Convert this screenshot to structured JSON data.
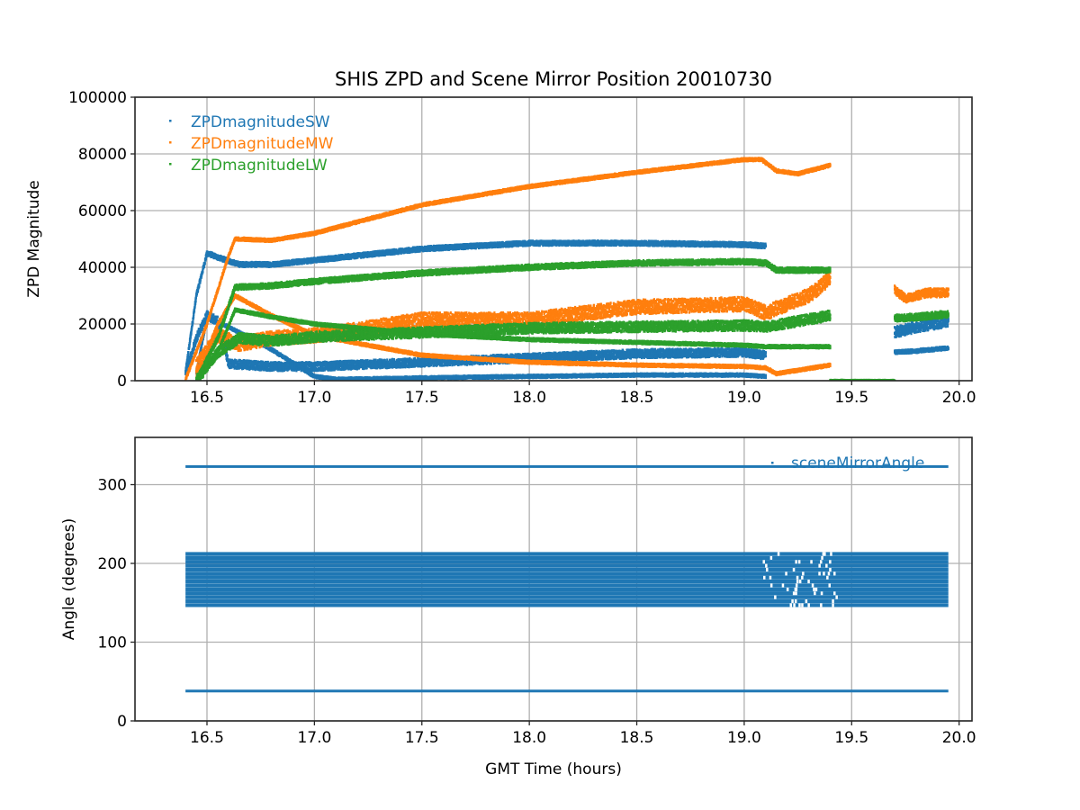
{
  "chart_data": [
    {
      "type": "scatter",
      "title": "SHIS ZPD and Scene Mirror Position 20010730",
      "xlabel": "",
      "ylabel": "ZPD Magnitude",
      "xlim": [
        16.165,
        20.06
      ],
      "ylim": [
        0,
        100000
      ],
      "xticks": [
        "16.5",
        "17.0",
        "17.5",
        "18.0",
        "18.5",
        "19.0",
        "19.5",
        "20.0"
      ],
      "xtick_values": [
        16.5,
        17.0,
        17.5,
        18.0,
        18.5,
        19.0,
        19.5,
        20.0
      ],
      "yticks": [
        "0",
        "20000",
        "40000",
        "60000",
        "80000",
        "100000"
      ],
      "ytick_values": [
        0,
        20000,
        40000,
        60000,
        80000,
        100000
      ],
      "grid": true,
      "legend_position": "top-left",
      "series": [
        {
          "name": "ZPDmagnitudeSW",
          "color": "#1f77b4",
          "bands": [
            {
              "x": [
                16.4,
                16.45,
                16.5,
                16.55,
                16.65,
                16.8,
                17.0,
                17.5,
                18.0,
                18.5,
                19.0,
                19.1
              ],
              "y": [
                3000,
                30000,
                45000,
                43500,
                41000,
                41000,
                42500,
                46500,
                48500,
                48500,
                48000,
                47500
              ],
              "spread": 800
            },
            {
              "x": [
                16.4,
                16.45,
                16.5,
                16.55,
                16.6,
                16.8,
                17.0,
                17.5,
                18.0,
                18.5,
                19.0,
                19.1
              ],
              "y": [
                2000,
                15000,
                23000,
                21000,
                6000,
                5000,
                5000,
                6500,
                8000,
                9500,
                10000,
                9000
              ],
              "spread": 1500
            },
            {
              "x": [
                16.45,
                16.5,
                16.6,
                16.8,
                17.0,
                17.1,
                17.5,
                18.0,
                18.5,
                19.0,
                19.1
              ],
              "y": [
                3000,
                22000,
                19000,
                11000,
                1500,
                500,
                1000,
                1500,
                2000,
                2000,
                1500
              ],
              "spread": 500
            },
            {
              "x": [
                19.7,
                19.8,
                19.95
              ],
              "y": [
                17000,
                19000,
                21000
              ],
              "spread": 2000
            },
            {
              "x": [
                19.7,
                19.8,
                19.95
              ],
              "y": [
                10000,
                10500,
                11500
              ],
              "spread": 600
            }
          ]
        },
        {
          "name": "ZPDmagnitudeMW",
          "color": "#ff7f0e",
          "bands": [
            {
              "x": [
                16.4,
                16.5,
                16.6,
                16.63,
                16.8,
                17.0,
                17.5,
                18.0,
                18.5,
                19.0,
                19.08,
                19.15,
                19.25,
                19.4
              ],
              "y": [
                500,
                20000,
                44000,
                50000,
                49500,
                52000,
                62000,
                68500,
                73500,
                78000,
                78000,
                74000,
                73000,
                76000
              ],
              "spread": 500
            },
            {
              "x": [
                16.45,
                16.55,
                16.65,
                16.8,
                17.0,
                17.2,
                17.5,
                18.0,
                18.5,
                19.0,
                19.1,
                19.3,
                19.4
              ],
              "y": [
                5000,
                16000,
                13000,
                15000,
                16000,
                18000,
                21500,
                21500,
                26000,
                27000,
                24000,
                30000,
                36000
              ],
              "spread": 2500
            },
            {
              "x": [
                16.45,
                16.55,
                16.63,
                16.8,
                17.0,
                17.5,
                18.0,
                18.5,
                19.0,
                19.1,
                19.15,
                19.4
              ],
              "y": [
                1000,
                20000,
                30000,
                23000,
                16000,
                9000,
                6500,
                5500,
                5000,
                4500,
                2500,
                5500
              ],
              "spread": 500
            },
            {
              "x": [
                19.7,
                19.75,
                19.85,
                19.95
              ],
              "y": [
                32000,
                29000,
                31000,
                31000
              ],
              "spread": 1500
            }
          ]
        },
        {
          "name": "ZPDmagnitudeLW",
          "color": "#2ca02c",
          "bands": [
            {
              "x": [
                16.45,
                16.55,
                16.63,
                16.8,
                17.0,
                17.5,
                18.0,
                18.5,
                19.0,
                19.1,
                19.15,
                19.4
              ],
              "y": [
                0,
                15000,
                33000,
                33500,
                35000,
                38000,
                40000,
                41500,
                42000,
                41500,
                39000,
                39000
              ],
              "spread": 900
            },
            {
              "x": [
                16.45,
                16.55,
                16.65,
                16.8,
                17.0,
                17.5,
                18.0,
                18.5,
                19.0,
                19.1,
                19.4
              ],
              "y": [
                0,
                10000,
                15000,
                14000,
                15500,
                17000,
                18500,
                19000,
                19500,
                19000,
                23000
              ],
              "spread": 1800
            },
            {
              "x": [
                16.45,
                16.55,
                16.63,
                16.8,
                17.0,
                17.5,
                18.0,
                18.5,
                19.0,
                19.1,
                19.4
              ],
              "y": [
                0,
                10000,
                25000,
                22500,
                20000,
                16500,
                14500,
                13500,
                12500,
                12000,
                12000
              ],
              "spread": 500
            },
            {
              "x": [
                19.4,
                19.7
              ],
              "y": [
                0,
                0
              ],
              "spread": 200
            },
            {
              "x": [
                19.7,
                19.8,
                19.95
              ],
              "y": [
                22000,
                22500,
                23500
              ],
              "spread": 1200
            }
          ]
        }
      ]
    },
    {
      "type": "scatter",
      "title": "",
      "xlabel": "GMT Time (hours)",
      "ylabel": "Angle (degrees)",
      "xlim": [
        16.165,
        20.06
      ],
      "ylim": [
        0,
        360
      ],
      "xticks": [
        "16.5",
        "17.0",
        "17.5",
        "18.0",
        "18.5",
        "19.0",
        "19.5",
        "20.0"
      ],
      "xtick_values": [
        16.5,
        17.0,
        17.5,
        18.0,
        18.5,
        19.0,
        19.5,
        20.0
      ],
      "yticks": [
        "0",
        "100",
        "200",
        "300"
      ],
      "ytick_values": [
        0,
        100,
        200,
        300
      ],
      "grid": true,
      "legend_position": "top-right",
      "series": [
        {
          "name": "sceneMirrorAngle",
          "color": "#1f77b4",
          "x_range": [
            16.4,
            19.95
          ],
          "levels": [
            38,
            147,
            152,
            157,
            162,
            167,
            172,
            177,
            182,
            187,
            192,
            197,
            202,
            207,
            212,
            323
          ]
        }
      ]
    }
  ]
}
